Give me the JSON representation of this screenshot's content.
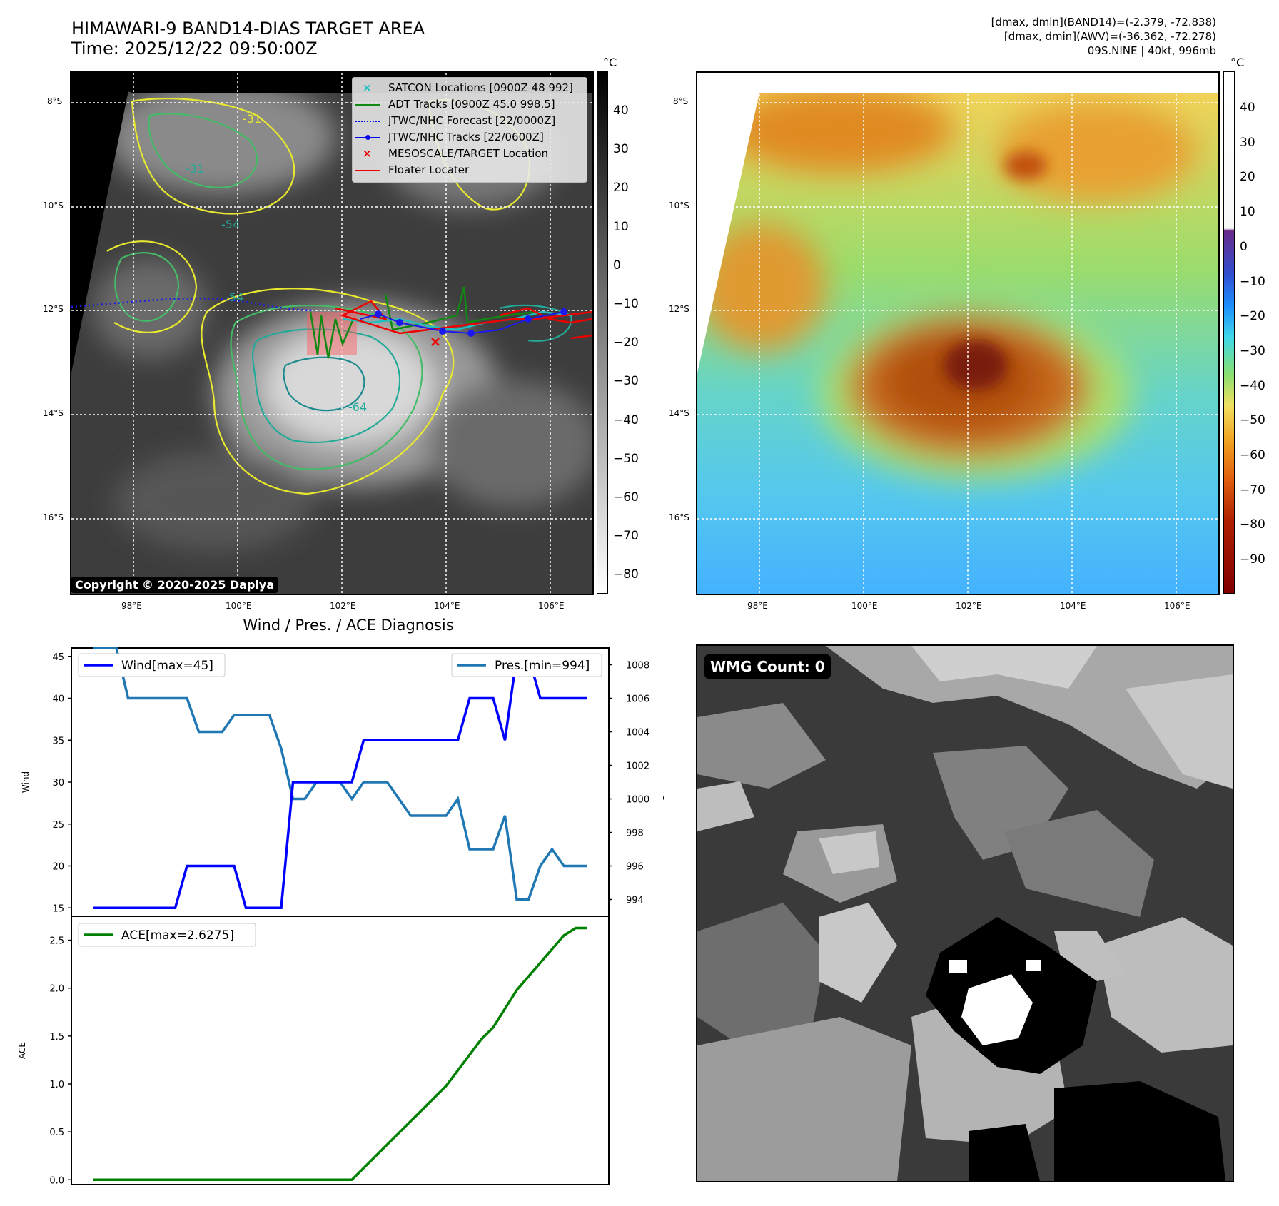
{
  "header": {
    "title_line1": "HIMAWARI-9 BAND14-DIAS TARGET AREA",
    "title_line2": "Time: 2025/12/22 09:50:00Z",
    "info_line1": "[dmax, dmin](BAND14)=(-2.379, -72.838)",
    "info_line2": "[dmax, dmin](AWV)=(-36.362, -72.278)",
    "info_line3": "09S.NINE | 40kt, 996mb"
  },
  "map": {
    "lat_labels": [
      "8°S",
      "10°S",
      "12°S",
      "14°S",
      "16°S"
    ],
    "lon_labels": [
      "98°E",
      "100°E",
      "102°E",
      "104°E",
      "106°E"
    ],
    "contour_labels": [
      "-31",
      "-54",
      "-64",
      "-31",
      "-54"
    ],
    "copyright": "Copyright © 2020-2025 Dapiya",
    "legend": [
      {
        "label": "SATCON Locations [0900Z 48 992]",
        "marker": "x",
        "color": "#1fbfbf"
      },
      {
        "label": "ADT Tracks [0900Z 45.0 998.5]",
        "marker": "line",
        "color": "#118811"
      },
      {
        "label": "JTWC/NHC Forecast [22/0000Z]",
        "marker": "dotted",
        "color": "#0000ee"
      },
      {
        "label": "JTWC/NHC Tracks [22/0600Z]",
        "marker": "line-dot",
        "color": "#0000ee"
      },
      {
        "label": "MESOSCALE/TARGET Location",
        "marker": "x",
        "color": "#ee0000"
      },
      {
        "label": "Floater Locater",
        "marker": "line",
        "color": "#ee0000"
      }
    ]
  },
  "colorbar_gray": {
    "unit": "°C",
    "ticks": [
      "40",
      "30",
      "20",
      "10",
      "0",
      "−10",
      "−20",
      "−30",
      "−40",
      "−50",
      "−60",
      "−70",
      "−80"
    ]
  },
  "colorbar_color": {
    "unit": "°C",
    "ticks": [
      "40",
      "30",
      "20",
      "10",
      "0",
      "−10",
      "−20",
      "−30",
      "−40",
      "−50",
      "−60",
      "−70",
      "−80",
      "−90"
    ]
  },
  "diagnosis_title": "Wind / Pres. / ACE Diagnosis",
  "wmg_label": "WMG Count: 0",
  "chart_data": [
    {
      "type": "line",
      "title": "Wind / Pres. / ACE Diagnosis",
      "ylabel": "Wind",
      "ylabel_right": "Pressure",
      "ylim": [
        14,
        46
      ],
      "ylim_right": [
        993,
        1009
      ],
      "yticks": [
        "15",
        "20",
        "25",
        "30",
        "35",
        "40",
        "45"
      ],
      "yticks_right": [
        "994",
        "996",
        "998",
        "1000",
        "1002",
        "1004",
        "1006",
        "1008"
      ],
      "series": [
        {
          "name": "Wind[max=45]",
          "color": "#0000ff",
          "values": [
            15,
            15,
            15,
            15,
            15,
            15,
            15,
            15,
            20,
            20,
            20,
            20,
            20,
            15,
            15,
            15,
            15,
            30,
            30,
            30,
            30,
            30,
            30,
            35,
            35,
            35,
            35,
            35,
            35,
            35,
            35,
            35,
            40,
            40,
            40,
            35,
            45,
            45,
            40,
            40,
            40,
            40,
            40
          ]
        },
        {
          "name": "Pres.[min=994]",
          "color": "#1f77b4",
          "axis": "right",
          "values": [
            1009,
            1009,
            1009,
            1006,
            1006,
            1006,
            1006,
            1006,
            1006,
            1004,
            1004,
            1004,
            1005,
            1005,
            1005,
            1005,
            1003,
            1000,
            1000,
            1001,
            1001,
            1001,
            1000,
            1001,
            1001,
            1001,
            1000,
            999,
            999,
            999,
            999,
            1000,
            997,
            997,
            997,
            999,
            994,
            994,
            996,
            997,
            996,
            996,
            996
          ]
        }
      ]
    },
    {
      "type": "line",
      "ylabel": "ACE",
      "ylim": [
        -0.05,
        2.75
      ],
      "yticks": [
        "0.0",
        "0.5",
        "1.0",
        "1.5",
        "2.0",
        "2.5"
      ],
      "series": [
        {
          "name": "ACE[max=2.6275]",
          "color": "#008000",
          "values": [
            0,
            0,
            0,
            0,
            0,
            0,
            0,
            0,
            0,
            0,
            0,
            0,
            0,
            0,
            0,
            0,
            0,
            0,
            0,
            0,
            0,
            0,
            0,
            0.1225,
            0.245,
            0.3675,
            0.49,
            0.6125,
            0.735,
            0.8575,
            0.98,
            1.1425,
            1.305,
            1.4675,
            1.59,
            1.785,
            1.98,
            2.1225,
            2.265,
            2.4075,
            2.55,
            2.6275,
            2.6275
          ]
        }
      ]
    }
  ]
}
